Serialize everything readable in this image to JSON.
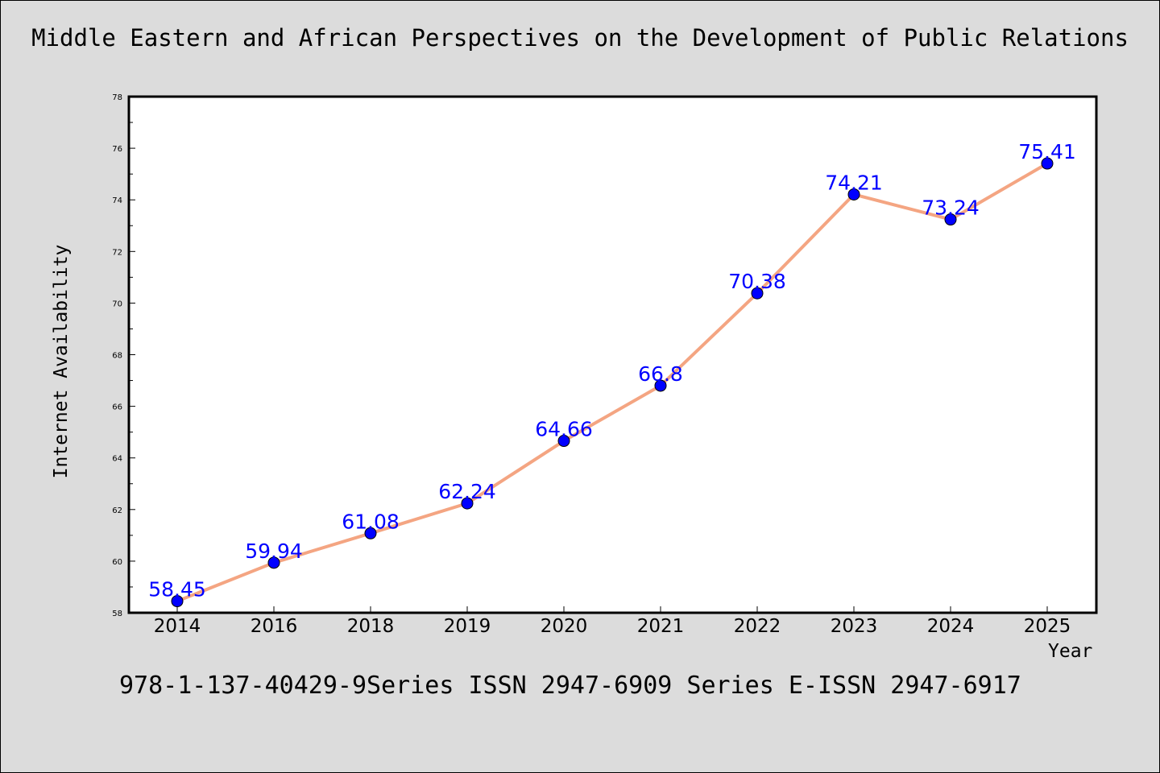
{
  "colors": {
    "background": "#dcdcdc",
    "plot_background": "#ffffff",
    "line": "#f4a582",
    "marker": "#0000ff",
    "data_label": "#0000ff"
  },
  "footer": {
    "text": "978-1-137-40429-9Series ISSN 2947-6909 Series E-ISSN 2947-6917"
  },
  "chart_data": {
    "type": "line",
    "title": "Middle Eastern and African Perspectives on the Development of Public Relations",
    "xlabel": "Year",
    "ylabel": "Internet Availability",
    "categories": [
      "2014",
      "2016",
      "2018",
      "2019",
      "2020",
      "2021",
      "2022",
      "2023",
      "2024",
      "2025"
    ],
    "series": [
      {
        "values": [
          58.45,
          59.94,
          61.08,
          62.24,
          64.66,
          66.8,
          70.38,
          74.21,
          73.24,
          75.41
        ],
        "labels": [
          "58.45",
          "59.94",
          "61.08",
          "62.24",
          "64.66",
          "66.8",
          "70.38",
          "74.21",
          "73.24",
          "75.41"
        ]
      }
    ],
    "ylim": [
      58,
      78
    ],
    "yticks": [
      "58",
      "60",
      "62",
      "64",
      "66",
      "68",
      "70",
      "72",
      "74",
      "76",
      "78"
    ],
    "grid": false,
    "legend": "none"
  }
}
